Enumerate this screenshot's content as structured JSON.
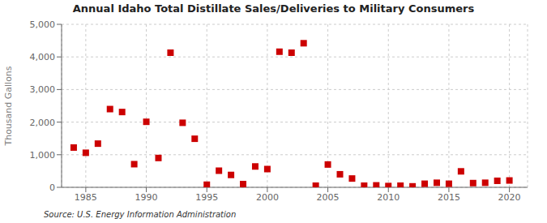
{
  "chart_data": {
    "type": "scatter",
    "title": "Annual Idaho Total Distillate Sales/Deliveries to Military Consumers",
    "ylabel": "Thousand Gallons",
    "annotation": "Source: U.S. Energy Information Administration",
    "color": "#cc0000",
    "marker": "square",
    "grid": true,
    "xlim": [
      1983,
      2021.5
    ],
    "ylim": [
      0,
      5000
    ],
    "xticks": [
      1985,
      1990,
      1995,
      2000,
      2005,
      2010,
      2015,
      2020
    ],
    "yticks": [
      0,
      {
        "value": 1000,
        "label": "1,000"
      },
      {
        "value": 2000,
        "label": "2,000"
      },
      {
        "value": 3000,
        "label": "3,000"
      },
      {
        "value": 4000,
        "label": "4,000"
      },
      {
        "value": 5000,
        "label": "5,000"
      }
    ],
    "x": [
      1984,
      1985,
      1986,
      1987,
      1988,
      1989,
      1990,
      1991,
      1992,
      1993,
      1994,
      1995,
      1996,
      1997,
      1998,
      1999,
      2000,
      2001,
      2002,
      2003,
      2004,
      2005,
      2006,
      2007,
      2008,
      2009,
      2010,
      2011,
      2012,
      2013,
      2014,
      2015,
      2016,
      2017,
      2018,
      2019,
      2020
    ],
    "values": [
      1220,
      1060,
      1340,
      2400,
      2310,
      710,
      2010,
      900,
      4130,
      1980,
      1490,
      80,
      510,
      380,
      100,
      640,
      560,
      4160,
      4130,
      4420,
      50,
      700,
      400,
      270,
      50,
      60,
      40,
      50,
      30,
      110,
      140,
      110,
      490,
      130,
      140,
      200,
      210
    ]
  }
}
